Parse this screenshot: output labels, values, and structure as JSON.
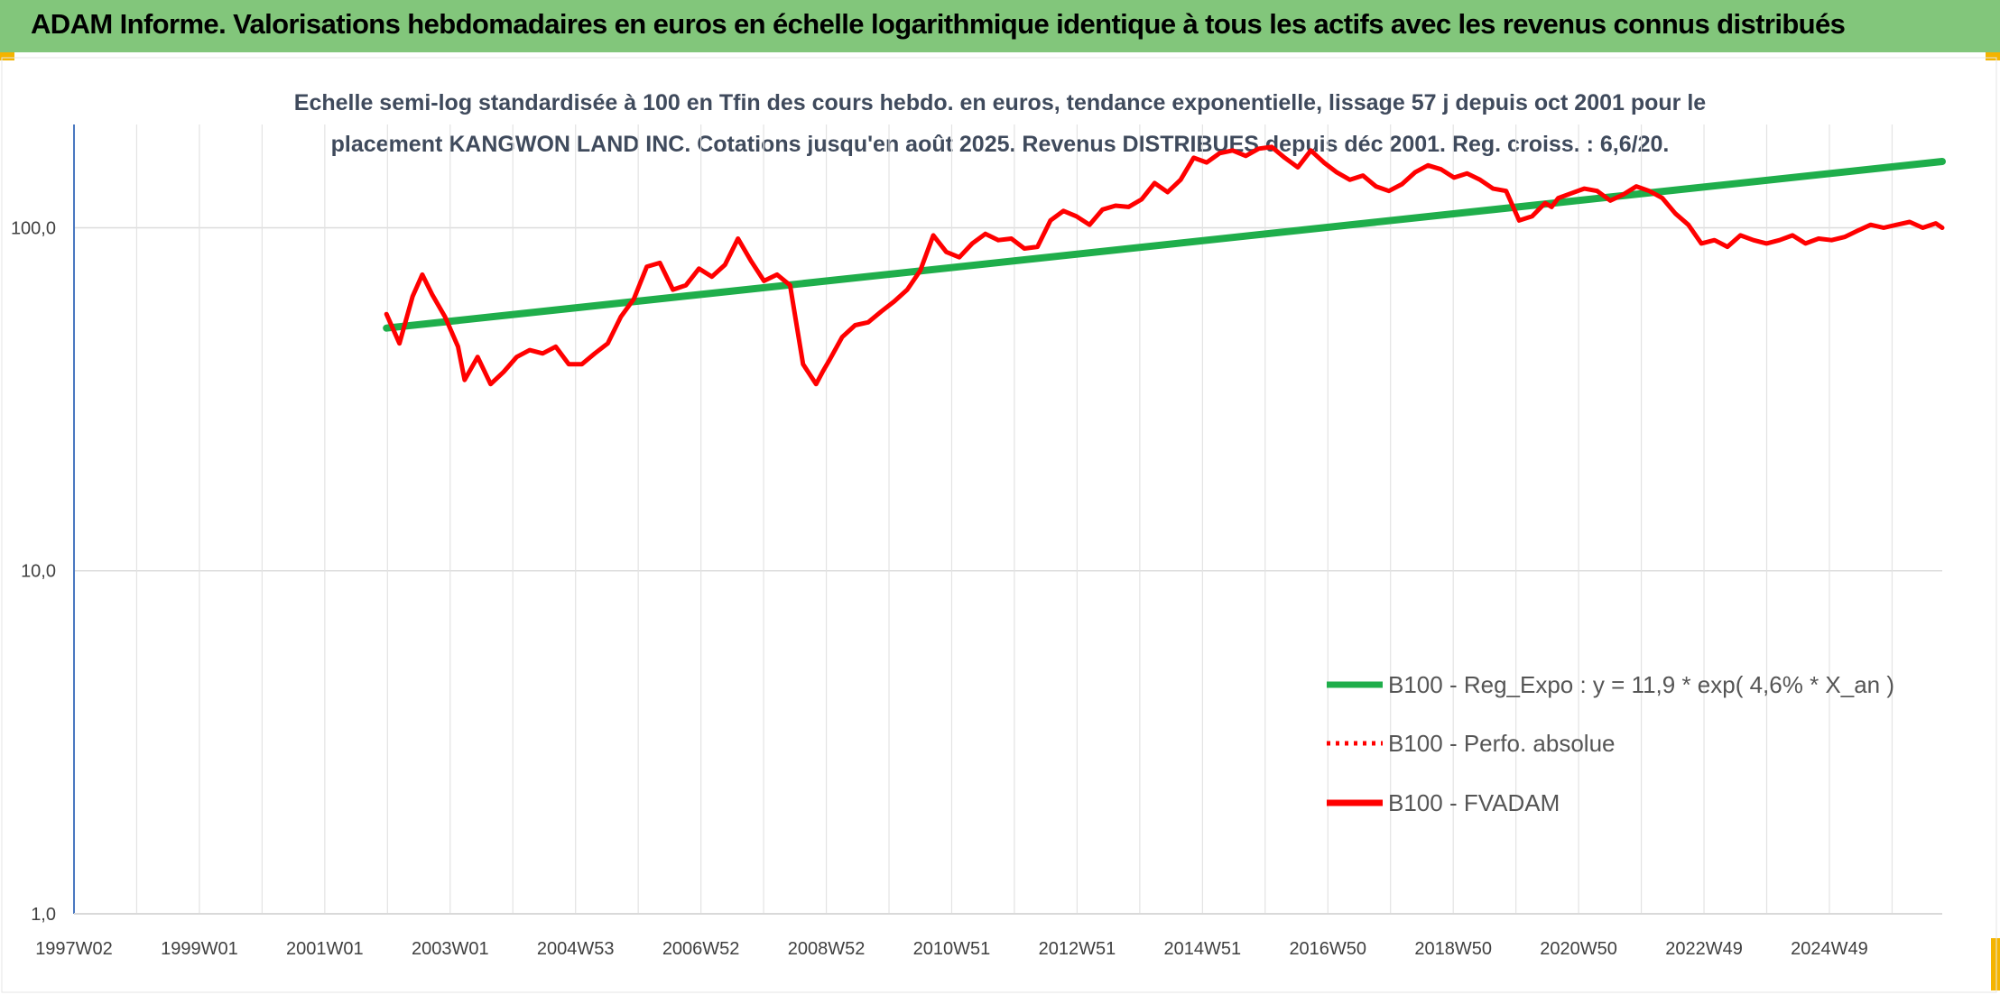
{
  "banner": {
    "title": "ADAM Informe. Valorisations hebdomadaires en euros en échelle logarithmique identique à tous les actifs avec les revenus connus distribués"
  },
  "chart_data": {
    "type": "line",
    "subtitle_line1": "Echelle semi-log standardisée à 100 en Tfin des cours hebdo. en euros, tendance exponentielle, lissage 57 j depuis oct 2001 pour le",
    "subtitle_line2": "placement KANGWON LAND INC. Cotations jusqu'en août 2025. Revenus DISTRIBUES depuis déc 2001. Reg. croiss. : 6,6/20.",
    "y_scale": "log",
    "ylim": [
      1,
      200
    ],
    "y_ticks": [
      "100,0",
      "10,0",
      "1,0"
    ],
    "y_tick_values": [
      100,
      10,
      1
    ],
    "x_tick_labels": [
      "1997W02",
      "1999W01",
      "2001W01",
      "2003W01",
      "2004W53",
      "2006W52",
      "2008W52",
      "2010W51",
      "2012W51",
      "2014W51",
      "2016W50",
      "2018W50",
      "2020W50",
      "2022W49",
      "2024W49"
    ],
    "xlim": [
      1997.0,
      2025.7
    ],
    "grid": true,
    "legend_position": "bottom-right",
    "legend": [
      "B100 - Reg_Expo : y = 11,9 * exp( 4,6% *  X_an )",
      "B100 - Perfo. absolue",
      "B100 - FVADAM"
    ],
    "series": [
      {
        "name": "B100 - Reg_Expo : y = 11,9 * exp( 4,6% *  X_an )",
        "color": "#1fae4b",
        "style": "solid",
        "x": [
          2001.8,
          2025.7
        ],
        "y": [
          51,
          156
        ]
      },
      {
        "name": "B100 - Perfo. absolue",
        "color": "#ff0000",
        "style": "dotted",
        "x": [],
        "y": []
      },
      {
        "name": "B100 - FVADAM",
        "color": "#ff0000",
        "style": "solid",
        "x": [
          2001.8,
          2002.0,
          2002.2,
          2002.35,
          2002.5,
          2002.7,
          2002.9,
          2003.0,
          2003.2,
          2003.4,
          2003.6,
          2003.8,
          2004.0,
          2004.2,
          2004.4,
          2004.6,
          2004.8,
          2005.0,
          2005.2,
          2005.4,
          2005.6,
          2005.8,
          2006.0,
          2006.2,
          2006.4,
          2006.6,
          2006.8,
          2007.0,
          2007.2,
          2007.4,
          2007.6,
          2007.8,
          2008.0,
          2008.2,
          2008.4,
          2008.5,
          2008.6,
          2008.8,
          2009.0,
          2009.2,
          2009.4,
          2009.6,
          2009.8,
          2010.0,
          2010.2,
          2010.4,
          2010.6,
          2010.8,
          2011.0,
          2011.2,
          2011.4,
          2011.6,
          2011.8,
          2012.0,
          2012.2,
          2012.4,
          2012.6,
          2012.8,
          2013.0,
          2013.2,
          2013.4,
          2013.6,
          2013.8,
          2014.0,
          2014.2,
          2014.4,
          2014.6,
          2014.8,
          2015.0,
          2015.2,
          2015.4,
          2015.6,
          2015.8,
          2016.0,
          2016.2,
          2016.4,
          2016.6,
          2016.8,
          2017.0,
          2017.2,
          2017.4,
          2017.6,
          2017.8,
          2018.0,
          2018.2,
          2018.4,
          2018.6,
          2018.8,
          2019.0,
          2019.2,
          2019.4,
          2019.6,
          2019.7,
          2019.8,
          2020.0,
          2020.2,
          2020.4,
          2020.6,
          2020.8,
          2021.0,
          2021.2,
          2021.4,
          2021.6,
          2021.8,
          2022.0,
          2022.2,
          2022.4,
          2022.6,
          2022.8,
          2023.0,
          2023.2,
          2023.4,
          2023.6,
          2023.8,
          2024.0,
          2024.2,
          2024.4,
          2024.6,
          2024.8,
          2025.0,
          2025.2,
          2025.4,
          2025.6,
          2025.7
        ],
        "y": [
          56,
          46,
          63,
          73,
          64,
          55,
          45,
          36,
          42,
          35,
          38,
          42,
          44,
          43,
          45,
          40,
          40,
          43,
          46,
          55,
          62,
          77,
          79,
          66,
          68,
          76,
          72,
          78,
          93,
          80,
          70,
          73,
          68,
          40,
          35,
          38,
          41,
          48,
          52,
          53,
          57,
          61,
          66,
          75,
          95,
          85,
          82,
          90,
          96,
          92,
          93,
          87,
          88,
          105,
          112,
          108,
          102,
          113,
          116,
          115,
          121,
          135,
          127,
          138,
          160,
          155,
          165,
          168,
          162,
          170,
          172,
          160,
          150,
          168,
          155,
          145,
          138,
          142,
          132,
          128,
          134,
          145,
          152,
          148,
          140,
          144,
          138,
          130,
          128,
          105,
          108,
          118,
          115,
          122,
          126,
          130,
          128,
          120,
          125,
          132,
          128,
          122,
          110,
          102,
          90,
          92,
          88,
          95,
          92,
          90,
          92,
          95,
          90,
          93,
          92,
          94,
          98,
          102,
          100,
          102,
          104,
          100,
          103,
          100
        ]
      }
    ]
  }
}
